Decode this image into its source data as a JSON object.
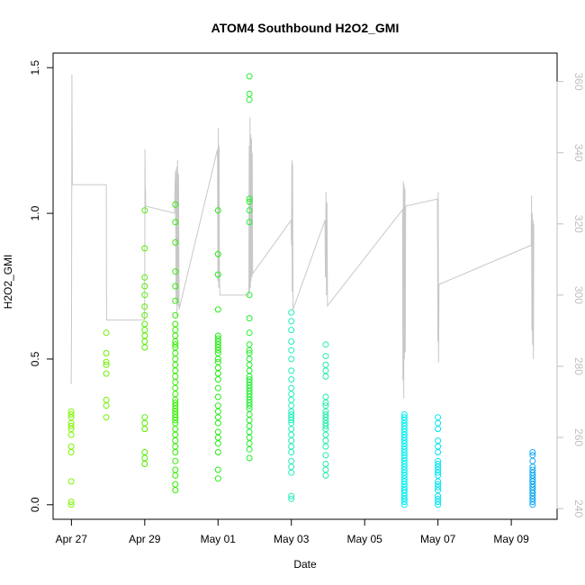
{
  "chart_data": {
    "type": "scatter",
    "title": "ATOM4 Southbound H2O2_GMI",
    "xlabel": "Date",
    "ylabel": "H2O2_GMI",
    "xlim": [
      "2017-04-26T12:00",
      "2017-05-10T06:00"
    ],
    "ylim": [
      -0.05,
      1.55
    ],
    "y2lim": [
      237,
      368
    ],
    "x_ticks": [
      {
        "date": "2017-04-27",
        "label": "Apr 27"
      },
      {
        "date": "2017-04-29",
        "label": "Apr 29"
      },
      {
        "date": "2017-05-01",
        "label": "May 01"
      },
      {
        "date": "2017-05-03",
        "label": "May 03"
      },
      {
        "date": "2017-05-05",
        "label": "May 05"
      },
      {
        "date": "2017-05-07",
        "label": "May 07"
      },
      {
        "date": "2017-05-09",
        "label": "May 09"
      }
    ],
    "y_ticks": [
      "0.0",
      "0.5",
      "1.0",
      "1.5"
    ],
    "y2_ticks": [
      "240",
      "260",
      "280",
      "300",
      "320",
      "340",
      "360"
    ],
    "grid": false,
    "series": [
      {
        "color": "#7ff500",
        "x": [
          "2017-04-26T23:50",
          "2017-04-26T23:50",
          "2017-04-26T23:50",
          "2017-04-26T23:50",
          "2017-04-26T23:50",
          "2017-04-26T23:50",
          "2017-04-26T23:50",
          "2017-04-26T23:50",
          "2017-04-26T23:50",
          "2017-04-26T23:50",
          "2017-04-26T23:50",
          "2017-04-26T23:50"
        ],
        "y": [
          0.0,
          0.01,
          0.08,
          0.18,
          0.2,
          0.24,
          0.26,
          0.27,
          0.28,
          0.3,
          0.31,
          0.32
        ]
      },
      {
        "color": "#6cf000",
        "x": [
          "2017-04-27T22:50",
          "2017-04-27T22:50",
          "2017-04-27T22:50",
          "2017-04-27T22:50",
          "2017-04-27T22:50",
          "2017-04-27T22:50",
          "2017-04-27T22:50",
          "2017-04-27T22:50"
        ],
        "y": [
          0.3,
          0.34,
          0.36,
          0.45,
          0.48,
          0.49,
          0.52,
          0.59
        ]
      },
      {
        "color": "#55ee00",
        "x": [
          "2017-04-29T00:00",
          "2017-04-29T00:00",
          "2017-04-29T00:00",
          "2017-04-29T00:00",
          "2017-04-29T00:00",
          "2017-04-29T00:00",
          "2017-04-29T00:00",
          "2017-04-29T00:00",
          "2017-04-29T00:00",
          "2017-04-29T00:00",
          "2017-04-29T00:00",
          "2017-04-29T00:00",
          "2017-04-29T00:00",
          "2017-04-29T00:00",
          "2017-04-29T00:00",
          "2017-04-29T00:00",
          "2017-04-29T00:00",
          "2017-04-29T00:00"
        ],
        "y": [
          0.14,
          0.16,
          0.18,
          0.26,
          0.28,
          0.3,
          0.54,
          0.56,
          0.58,
          0.6,
          0.62,
          0.65,
          0.68,
          0.72,
          0.75,
          0.78,
          0.88,
          1.01
        ]
      },
      {
        "color": "#33ee00",
        "x": [
          "2017-04-29T20:00",
          "2017-04-29T20:00",
          "2017-04-29T20:00",
          "2017-04-29T20:00",
          "2017-04-29T20:00",
          "2017-04-29T20:00",
          "2017-04-29T20:00",
          "2017-04-29T20:00",
          "2017-04-29T20:00",
          "2017-04-29T20:00",
          "2017-04-29T20:00",
          "2017-04-29T20:00",
          "2017-04-29T20:00",
          "2017-04-29T20:00",
          "2017-04-29T20:00",
          "2017-04-29T20:00",
          "2017-04-29T20:00",
          "2017-04-29T20:00",
          "2017-04-29T20:00",
          "2017-04-29T20:00",
          "2017-04-29T20:00",
          "2017-04-29T20:00",
          "2017-04-29T20:00",
          "2017-04-29T20:00",
          "2017-04-29T20:00",
          "2017-04-29T20:00",
          "2017-04-29T20:00",
          "2017-04-29T20:00",
          "2017-04-29T20:00",
          "2017-04-29T20:00",
          "2017-04-29T20:00",
          "2017-04-29T20:00",
          "2017-04-29T20:00",
          "2017-04-29T20:00",
          "2017-04-29T20:00",
          "2017-04-29T20:00",
          "2017-04-29T20:00",
          "2017-04-29T20:00",
          "2017-04-29T20:00",
          "2017-04-29T20:00"
        ],
        "y": [
          0.05,
          0.07,
          0.1,
          0.12,
          0.15,
          0.18,
          0.2,
          0.22,
          0.24,
          0.26,
          0.28,
          0.29,
          0.3,
          0.31,
          0.32,
          0.33,
          0.34,
          0.35,
          0.36,
          0.38,
          0.4,
          0.42,
          0.44,
          0.46,
          0.48,
          0.5,
          0.52,
          0.54,
          0.55,
          0.56,
          0.58,
          0.6,
          0.62,
          0.65,
          0.7,
          0.75,
          0.8,
          0.9,
          0.97,
          1.03
        ]
      },
      {
        "color": "#22ee10",
        "x": [
          "2017-05-01T00:00",
          "2017-05-01T00:00",
          "2017-05-01T00:00",
          "2017-05-01T00:00",
          "2017-05-01T00:00",
          "2017-05-01T00:00",
          "2017-05-01T00:00",
          "2017-05-01T00:00",
          "2017-05-01T00:00",
          "2017-05-01T00:00",
          "2017-05-01T00:00",
          "2017-05-01T00:00",
          "2017-05-01T00:00",
          "2017-05-01T00:00",
          "2017-05-01T00:00",
          "2017-05-01T00:00",
          "2017-05-01T00:00",
          "2017-05-01T00:00",
          "2017-05-01T00:00",
          "2017-05-01T00:00",
          "2017-05-01T00:00",
          "2017-05-01T00:00",
          "2017-05-01T00:00",
          "2017-05-01T00:00",
          "2017-05-01T00:00",
          "2017-05-01T00:00",
          "2017-05-01T00:00",
          "2017-05-01T00:00"
        ],
        "y": [
          0.09,
          0.12,
          0.18,
          0.21,
          0.23,
          0.25,
          0.28,
          0.3,
          0.32,
          0.34,
          0.37,
          0.4,
          0.43,
          0.45,
          0.47,
          0.49,
          0.5,
          0.52,
          0.53,
          0.54,
          0.55,
          0.56,
          0.57,
          0.58,
          0.67,
          0.79,
          0.86,
          1.01
        ]
      },
      {
        "color": "#22ee30",
        "x": [
          "2017-05-01T20:30",
          "2017-05-01T20:30",
          "2017-05-01T20:30",
          "2017-05-01T20:30",
          "2017-05-01T20:30",
          "2017-05-01T20:30",
          "2017-05-01T20:30",
          "2017-05-01T20:30",
          "2017-05-01T20:30",
          "2017-05-01T20:30",
          "2017-05-01T20:30",
          "2017-05-01T20:30",
          "2017-05-01T20:30",
          "2017-05-01T20:30",
          "2017-05-01T20:30",
          "2017-05-01T20:30",
          "2017-05-01T20:30",
          "2017-05-01T20:30",
          "2017-05-01T20:30",
          "2017-05-01T20:30",
          "2017-05-01T20:30",
          "2017-05-01T20:30",
          "2017-05-01T20:30",
          "2017-05-01T20:30",
          "2017-05-01T20:30",
          "2017-05-01T20:30",
          "2017-05-01T20:30",
          "2017-05-01T20:30",
          "2017-05-01T20:30",
          "2017-05-01T20:30",
          "2017-05-01T20:30",
          "2017-05-01T20:30",
          "2017-05-01T20:30",
          "2017-05-01T20:30",
          "2017-05-01T20:30",
          "2017-05-01T20:30"
        ],
        "y": [
          0.16,
          0.19,
          0.21,
          0.23,
          0.25,
          0.27,
          0.29,
          0.31,
          0.33,
          0.34,
          0.35,
          0.36,
          0.37,
          0.38,
          0.39,
          0.4,
          0.41,
          0.42,
          0.43,
          0.44,
          0.46,
          0.48,
          0.5,
          0.52,
          0.53,
          0.55,
          0.59,
          0.64,
          0.72,
          0.97,
          1.01,
          1.04,
          1.05,
          1.39,
          1.41,
          1.47
        ]
      },
      {
        "color": "#22eebb",
        "x": [
          "2017-05-03T00:00",
          "2017-05-03T00:00",
          "2017-05-03T00:00",
          "2017-05-03T00:00",
          "2017-05-03T00:00",
          "2017-05-03T00:00",
          "2017-05-03T00:00",
          "2017-05-03T00:00",
          "2017-05-03T00:00",
          "2017-05-03T00:00",
          "2017-05-03T00:00",
          "2017-05-03T00:00",
          "2017-05-03T00:00",
          "2017-05-03T00:00",
          "2017-05-03T00:00",
          "2017-05-03T00:00",
          "2017-05-03T00:00",
          "2017-05-03T00:00",
          "2017-05-03T00:00",
          "2017-05-03T00:00",
          "2017-05-03T00:00",
          "2017-05-03T00:00",
          "2017-05-03T00:00",
          "2017-05-03T00:00",
          "2017-05-03T00:00",
          "2017-05-03T00:00",
          "2017-05-03T00:00"
        ],
        "y": [
          0.02,
          0.03,
          0.11,
          0.13,
          0.15,
          0.18,
          0.2,
          0.22,
          0.24,
          0.26,
          0.28,
          0.29,
          0.3,
          0.31,
          0.32,
          0.34,
          0.36,
          0.38,
          0.4,
          0.43,
          0.46,
          0.5,
          0.53,
          0.56,
          0.6,
          0.63,
          0.66
        ]
      },
      {
        "color": "#22eeaa",
        "x": [
          "2017-05-03T22:30",
          "2017-05-03T22:30",
          "2017-05-03T22:30",
          "2017-05-03T22:30",
          "2017-05-03T22:30",
          "2017-05-03T22:30",
          "2017-05-03T22:30",
          "2017-05-03T22:30",
          "2017-05-03T22:30",
          "2017-05-03T22:30",
          "2017-05-03T22:30",
          "2017-05-03T22:30",
          "2017-05-03T22:30",
          "2017-05-03T22:30",
          "2017-05-03T22:30",
          "2017-05-03T22:30",
          "2017-05-03T22:30",
          "2017-05-03T22:30",
          "2017-05-03T22:30",
          "2017-05-03T22:30",
          "2017-05-03T22:30",
          "2017-05-03T22:30"
        ],
        "y": [
          0.1,
          0.12,
          0.14,
          0.17,
          0.2,
          0.22,
          0.24,
          0.26,
          0.27,
          0.28,
          0.29,
          0.3,
          0.31,
          0.32,
          0.34,
          0.35,
          0.37,
          0.44,
          0.46,
          0.48,
          0.51,
          0.55
        ]
      },
      {
        "color": "#00eeee",
        "x": [
          "2017-05-06T02:00",
          "2017-05-06T02:00",
          "2017-05-06T02:00",
          "2017-05-06T02:00",
          "2017-05-06T02:00",
          "2017-05-06T02:00",
          "2017-05-06T02:00",
          "2017-05-06T02:00",
          "2017-05-06T02:00",
          "2017-05-06T02:00",
          "2017-05-06T02:00",
          "2017-05-06T02:00",
          "2017-05-06T02:00",
          "2017-05-06T02:00",
          "2017-05-06T02:00",
          "2017-05-06T02:00",
          "2017-05-06T02:00",
          "2017-05-06T02:00",
          "2017-05-06T02:00",
          "2017-05-06T02:00",
          "2017-05-06T02:00",
          "2017-05-06T02:00",
          "2017-05-06T02:00",
          "2017-05-06T02:00",
          "2017-05-06T02:00",
          "2017-05-06T02:00",
          "2017-05-06T02:00",
          "2017-05-06T02:00",
          "2017-05-06T02:00",
          "2017-05-06T02:00",
          "2017-05-06T02:00",
          "2017-05-06T02:00",
          "2017-05-06T02:00",
          "2017-05-06T02:00"
        ],
        "y": [
          0.0,
          0.01,
          0.02,
          0.03,
          0.04,
          0.05,
          0.06,
          0.07,
          0.08,
          0.09,
          0.1,
          0.11,
          0.12,
          0.13,
          0.14,
          0.15,
          0.16,
          0.17,
          0.18,
          0.19,
          0.2,
          0.21,
          0.22,
          0.23,
          0.24,
          0.25,
          0.26,
          0.27,
          0.28,
          0.29,
          0.3,
          0.31,
          0.02,
          0.05
        ]
      },
      {
        "color": "#00e6f0",
        "x": [
          "2017-05-07T00:00",
          "2017-05-07T00:00",
          "2017-05-07T00:00",
          "2017-05-07T00:00",
          "2017-05-07T00:00",
          "2017-05-07T00:00",
          "2017-05-07T00:00",
          "2017-05-07T00:00",
          "2017-05-07T00:00",
          "2017-05-07T00:00",
          "2017-05-07T00:00",
          "2017-05-07T00:00",
          "2017-05-07T00:00",
          "2017-05-07T00:00",
          "2017-05-07T00:00",
          "2017-05-07T00:00",
          "2017-05-07T00:00",
          "2017-05-07T00:00",
          "2017-05-07T00:00",
          "2017-05-07T00:00"
        ],
        "y": [
          0.0,
          0.01,
          0.02,
          0.03,
          0.05,
          0.06,
          0.07,
          0.08,
          0.1,
          0.11,
          0.12,
          0.13,
          0.14,
          0.15,
          0.18,
          0.2,
          0.22,
          0.26,
          0.28,
          0.3
        ]
      },
      {
        "color": "#11aaf0",
        "x": [
          "2017-05-09T14:00",
          "2017-05-09T14:00",
          "2017-05-09T14:00",
          "2017-05-09T14:00",
          "2017-05-09T14:00",
          "2017-05-09T14:00",
          "2017-05-09T14:00",
          "2017-05-09T14:00",
          "2017-05-09T14:00",
          "2017-05-09T14:00",
          "2017-05-09T14:00",
          "2017-05-09T14:00",
          "2017-05-09T14:00",
          "2017-05-09T14:00",
          "2017-05-09T14:00",
          "2017-05-09T14:00",
          "2017-05-09T14:00",
          "2017-05-09T14:00",
          "2017-05-09T14:00",
          "2017-05-09T14:00",
          "2017-05-09T14:00",
          "2017-05-09T14:00"
        ],
        "y": [
          0.0,
          0.01,
          0.02,
          0.03,
          0.04,
          0.05,
          0.06,
          0.07,
          0.08,
          0.09,
          0.1,
          0.11,
          0.12,
          0.02,
          0.04,
          0.06,
          0.08,
          0.1,
          0.13,
          0.15,
          0.17,
          0.18
        ]
      }
    ],
    "secondary_line": {
      "color": "#c8c8c8",
      "x": [
        "2017-04-26T23:50",
        "2017-04-27T00:05",
        "2017-04-27T00:20",
        "2017-04-27T00:35",
        "2017-04-27T01:00",
        "2017-04-27T22:50",
        "2017-04-27T23:00",
        "2017-04-28T23:50",
        "2017-04-29T00:00",
        "2017-04-29T00:10",
        "2017-04-29T00:20",
        "2017-04-29T00:30",
        "2017-04-29T00:40",
        "2017-04-29T19:30",
        "2017-04-29T19:50",
        "2017-04-29T20:10",
        "2017-04-29T20:30",
        "2017-04-29T20:50",
        "2017-04-29T21:10",
        "2017-04-29T21:30",
        "2017-04-29T21:50",
        "2017-04-29T22:10",
        "2017-04-29T22:30",
        "2017-04-30T23:40",
        "2017-04-30T23:55",
        "2017-05-01T00:10",
        "2017-05-01T00:25",
        "2017-05-01T00:40",
        "2017-05-01T00:55",
        "2017-05-01T01:10",
        "2017-05-01T20:10",
        "2017-05-01T20:25",
        "2017-05-01T20:40",
        "2017-05-01T20:55",
        "2017-05-01T21:10",
        "2017-05-01T21:25",
        "2017-05-01T21:40",
        "2017-05-01T21:55",
        "2017-05-01T22:10",
        "2017-05-01T22:25",
        "2017-05-01T22:40",
        "2017-05-02T23:50",
        "2017-05-03T00:05",
        "2017-05-03T00:20",
        "2017-05-03T00:35",
        "2017-05-03T00:50",
        "2017-05-03T01:05",
        "2017-05-03T22:00",
        "2017-05-03T22:20",
        "2017-05-03T22:40",
        "2017-05-03T23:00",
        "2017-05-03T23:20",
        "2017-05-03T23:40",
        "2017-05-06T00:50",
        "2017-05-06T01:05",
        "2017-05-06T01:20",
        "2017-05-06T01:35",
        "2017-05-06T01:50",
        "2017-05-06T02:05",
        "2017-05-06T02:20",
        "2017-05-06T02:35",
        "2017-05-06T02:50",
        "2017-05-06T23:40",
        "2017-05-06T23:55",
        "2017-05-07T00:10",
        "2017-05-07T00:25",
        "2017-05-07T00:40",
        "2017-05-09T13:00",
        "2017-05-09T13:15",
        "2017-05-09T13:30",
        "2017-05-09T13:45",
        "2017-05-09T14:00",
        "2017-05-09T14:15",
        "2017-05-09T14:30",
        "2017-05-09T14:45"
      ],
      "y": [
        275,
        293,
        362,
        331,
        331,
        331,
        293,
        293,
        300,
        341,
        323,
        330,
        325,
        323,
        331,
        335,
        298,
        336,
        294,
        338,
        297,
        334,
        296,
        341,
        304,
        347,
        302,
        342,
        306,
        300,
        300,
        342,
        301,
        350,
        302,
        345,
        304,
        344,
        305,
        340,
        306,
        321,
        314,
        338,
        301,
        337,
        296,
        321,
        305,
        329,
        300,
        326,
        297,
        324,
        276,
        332,
        271,
        331,
        282,
        330,
        284,
        325,
        327,
        287,
        329,
        281,
        303,
        314,
        328,
        290,
        323,
        286,
        321,
        282,
        320
      ]
    }
  }
}
